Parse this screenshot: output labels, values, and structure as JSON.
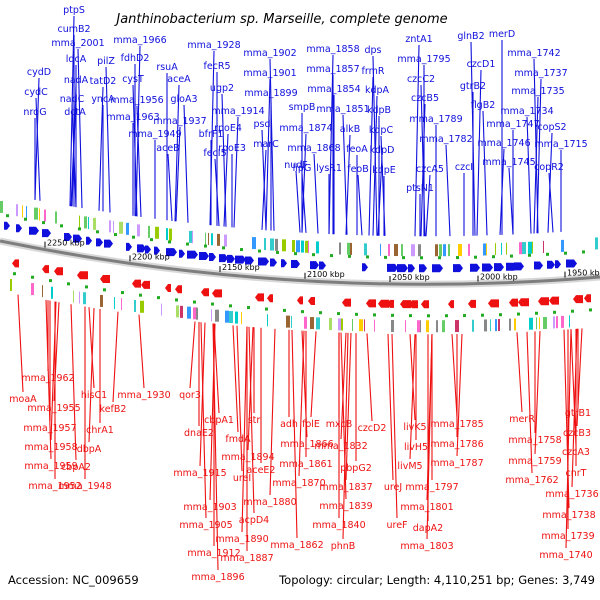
{
  "header": {
    "title": "Janthinobacterium sp. Marseille, complete genome"
  },
  "footer": {
    "accession": "Accession: NC_009659",
    "summary": "Topology: circular; Length: 4,110,251 bp; Genes: 3,749"
  },
  "colors": {
    "forward": "#1010dd",
    "reverse": "#ee1111",
    "backbone": "#8a8a8a",
    "tick": "#22aa22"
  },
  "scale": {
    "ticks": [
      {
        "label": "2250 kbp"
      },
      {
        "label": "2200 kbp"
      },
      {
        "label": "2150 kbp"
      },
      {
        "label": "2100 kbp"
      },
      {
        "label": "2050 kbp"
      },
      {
        "label": "2000 kbp"
      },
      {
        "label": "1950 kbp"
      }
    ]
  },
  "genes_forward": [
    "ptpS",
    "cumB2",
    "mma_2001",
    "cydD",
    "ldcA",
    "cydC",
    "nadA",
    "nrdG",
    "nadC",
    "dctA",
    "yncA",
    "pilZ",
    "tatD2",
    "fdhD2",
    "cysT",
    "mma_1966",
    "rsuA",
    "mma_1956",
    "aceA",
    "mma_1963",
    "gloA3",
    "mma_1937",
    "mma_1949",
    "aceB",
    "mma_1928",
    "fecR5",
    "ugp2",
    "mma_1914",
    "bfrF1",
    "fecI5",
    "rpoE4",
    "rpoE3",
    "mma_1902",
    "mma_1901",
    "mma_1899",
    "psd",
    "marC",
    "smpB",
    "nudF",
    "mma_1858",
    "mma_1857",
    "dps",
    "frmR",
    "mma_1854",
    "mma_1851",
    "mma_1874",
    "lysR1",
    "mma_1868",
    "alkB",
    "feoA",
    "feoB",
    "kdpA",
    "kdpB",
    "kdpC",
    "kdpD",
    "kdpE",
    "lipG",
    "zntA1",
    "mma_1795",
    "czcC2",
    "czcB5",
    "mma_1789",
    "mma_1782",
    "czcA5",
    "ptsN1",
    "glnB2",
    "czcD1",
    "merD",
    "mma_1742",
    "mma_1737",
    "gtrB2",
    "flgB2",
    "mma_1735",
    "mma_1747",
    "mma_1734",
    "mma_1746",
    "czcI",
    "mma_1745",
    "copS2",
    "mma_1715",
    "copR2"
  ],
  "genes_reverse": [
    "moaA",
    "mma_1962",
    "mma_1955",
    "hisC1",
    "mma_1957",
    "mma_1958",
    "mma_1959",
    "mma_1952",
    "kefB2",
    "mma_1930",
    "chrA1",
    "dbpA",
    "cbpA2",
    "mma_1948",
    "qor3",
    "cbpA1",
    "dnaE2",
    "mma_1915",
    "fmdA",
    "str",
    "mma_1894",
    "ureI",
    "aceE2",
    "mma_1903",
    "mma_1905",
    "mma_1912",
    "mma_1890",
    "acpD4",
    "mma_1887",
    "mma_1880",
    "mma_1896",
    "adh",
    "folE",
    "mma_1866",
    "mma_1861",
    "mma_1870",
    "mma_1862",
    "mxcB",
    "mma_1832",
    "czcD2",
    "pbpG2",
    "mma_1837",
    "mma_1839",
    "mma_1840",
    "phnB",
    "livK5",
    "livH5",
    "livM5",
    "ureJ",
    "mma_1797",
    "mma_1801",
    "ureF",
    "dapA2",
    "mma_1803",
    "mma_1785",
    "mma_1786",
    "mma_1787",
    "merR",
    "mma_1758",
    "mma_1759",
    "mma_1762",
    "gtrB1",
    "czcB3",
    "czcA3",
    "cnrT",
    "mma_1736",
    "mma_1738",
    "mma_1739",
    "mma_1740"
  ]
}
